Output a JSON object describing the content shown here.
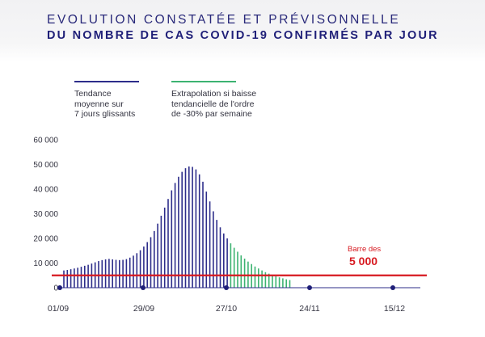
{
  "header": {
    "title_line1": "EVOLUTION CONSTATÉE ET PRÉVISONNELLE",
    "title_line2": "DU NOMBRE DE CAS COVID-19 CONFIRMÉS PAR JOUR"
  },
  "legend": [
    {
      "label": "Tendance\nmoyenne sur\n7 jours glissants",
      "color": "#2d2d8a"
    },
    {
      "label": "Extrapolation si baisse\ntendancielle de l'ordre\nde -30% par semaine",
      "color": "#3cb371"
    }
  ],
  "annotation": {
    "line1": "Barre des",
    "line2": "5 000"
  },
  "colors": {
    "observed": "#2d2d8a",
    "forecast": "#3cb371",
    "threshold": "#d71920",
    "title": "#29297a"
  },
  "chart_data": {
    "type": "bar",
    "title": "EVOLUTION CONSTATÉE ET PRÉVISONNELLE DU NOMBRE DE CAS COVID-19 CONFIRMÉS PAR JOUR",
    "x_start": "01/09",
    "x_ticks": [
      "01/09",
      "29/09",
      "27/10",
      "24/11",
      "15/12"
    ],
    "y_ticks": [
      "0",
      "10 000",
      "20 000",
      "30 000",
      "40 000",
      "50 000",
      "60 000"
    ],
    "ylim": [
      0,
      60000
    ],
    "threshold": 5000,
    "series": [
      {
        "name": "Tendance moyenne sur 7 jours glissants",
        "values": [
          7000,
          7200,
          7500,
          7800,
          8100,
          8500,
          8900,
          9300,
          9800,
          10300,
          10800,
          11200,
          11500,
          11700,
          11500,
          11300,
          11200,
          11300,
          11600,
          12200,
          13000,
          14000,
          15200,
          16700,
          18500,
          20500,
          23000,
          26000,
          29200,
          32500,
          36000,
          39500,
          42500,
          45000,
          47000,
          48500,
          49200,
          49000,
          48000,
          46000,
          43000,
          39000,
          35000,
          31000,
          27500,
          24500,
          22000,
          20000
        ]
      },
      {
        "name": "Extrapolation si baisse tendancielle de l'ordre de -30% par semaine",
        "values": [
          18000,
          16200,
          14600,
          13100,
          11800,
          10600,
          9600,
          8600,
          7800,
          7000,
          6300,
          5700,
          5100,
          4600,
          4200,
          3800,
          3400,
          3100
        ]
      }
    ]
  }
}
